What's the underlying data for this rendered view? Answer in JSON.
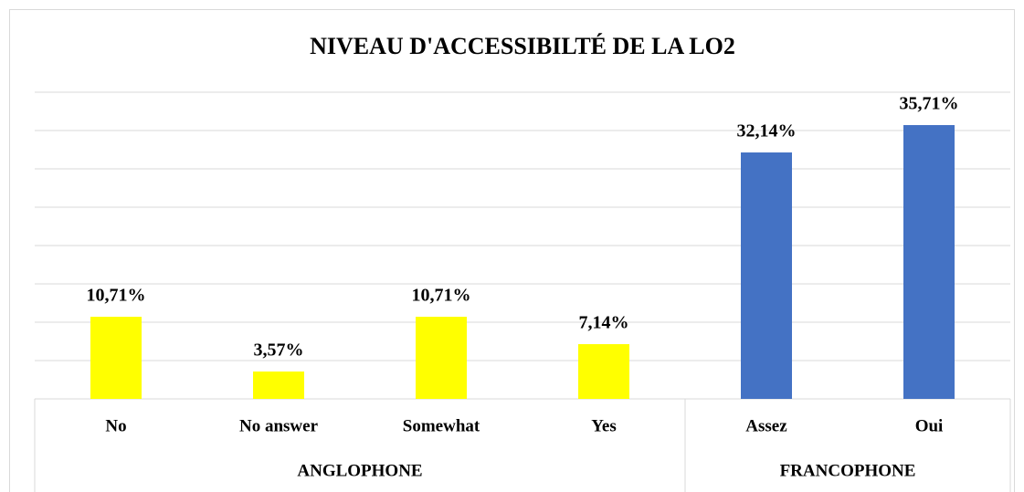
{
  "chart_data": {
    "type": "bar",
    "title": "NIVEAU D'ACCESSIBILTÉ DE LA LO2",
    "groups": [
      {
        "name": "ANGLOPHONE",
        "color": "#ffff00",
        "categories": [
          "No",
          "No answer",
          "Somewhat",
          "Yes"
        ],
        "values": [
          10.71,
          3.57,
          10.71,
          7.14
        ],
        "value_labels": [
          "10,71%",
          "3,57%",
          "10,71%",
          "7,14%"
        ]
      },
      {
        "name": "FRANCOPHONE",
        "color": "#4472c4",
        "categories": [
          "Assez",
          "Oui"
        ],
        "values": [
          32.14,
          35.71
        ],
        "value_labels": [
          "32,14%",
          "35,71%"
        ]
      }
    ],
    "ylim": [
      0,
      40
    ],
    "yticks": [
      0,
      5,
      10,
      15,
      20,
      25,
      30,
      35,
      40
    ],
    "grid": true
  }
}
